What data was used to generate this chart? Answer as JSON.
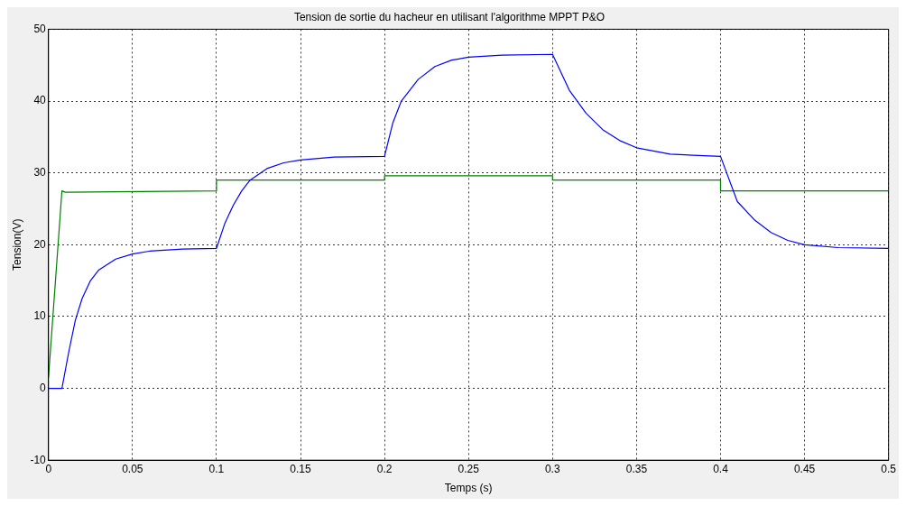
{
  "chart_data": {
    "type": "line",
    "title": "Tension de sortie du hacheur en utilisant l'algorithme MPPT P&O",
    "xlabel": "Temps (s)",
    "ylabel": "Tension(V)",
    "xlim": [
      0,
      0.5
    ],
    "xticks": [
      0,
      0.05,
      0.1,
      0.15,
      0.2,
      0.25,
      0.3,
      0.35,
      0.4,
      0.45,
      0.5
    ],
    "ylim": [
      -10,
      50
    ],
    "yticks": [
      -10,
      0,
      10,
      20,
      30,
      40,
      50
    ],
    "grid": true,
    "legend": false,
    "marker": "none",
    "line_style": "solid",
    "series": [
      {
        "color": "#0000ff",
        "x": [
          0,
          0.008,
          0.012,
          0.016,
          0.02,
          0.025,
          0.03,
          0.04,
          0.05,
          0.06,
          0.08,
          0.1,
          0.105,
          0.11,
          0.115,
          0.12,
          0.13,
          0.14,
          0.15,
          0.17,
          0.2,
          0.205,
          0.21,
          0.22,
          0.23,
          0.24,
          0.25,
          0.27,
          0.3,
          0.31,
          0.32,
          0.33,
          0.34,
          0.35,
          0.37,
          0.4,
          0.41,
          0.42,
          0.43,
          0.44,
          0.45,
          0.47,
          0.5
        ],
        "values": [
          0,
          0,
          5,
          9.5,
          12.5,
          15,
          16.5,
          18,
          18.7,
          19.1,
          19.4,
          19.5,
          23,
          25.5,
          27.5,
          29,
          30.6,
          31.4,
          31.8,
          32.2,
          32.3,
          37,
          40,
          43,
          44.8,
          45.7,
          46.1,
          46.4,
          46.5,
          41.5,
          38.3,
          36,
          34.5,
          33.5,
          32.6,
          32.3,
          26,
          23.5,
          21.7,
          20.6,
          20,
          19.6,
          19.5
        ]
      },
      {
        "color": "#008000",
        "x": [
          0,
          0.008,
          0.01,
          0.1,
          0.1,
          0.2,
          0.2,
          0.3,
          0.3,
          0.4,
          0.4,
          0.5
        ],
        "values": [
          1.5,
          27.5,
          27.3,
          27.5,
          29,
          29,
          29.6,
          29.6,
          29,
          29,
          27.5,
          27.5
        ]
      }
    ]
  }
}
